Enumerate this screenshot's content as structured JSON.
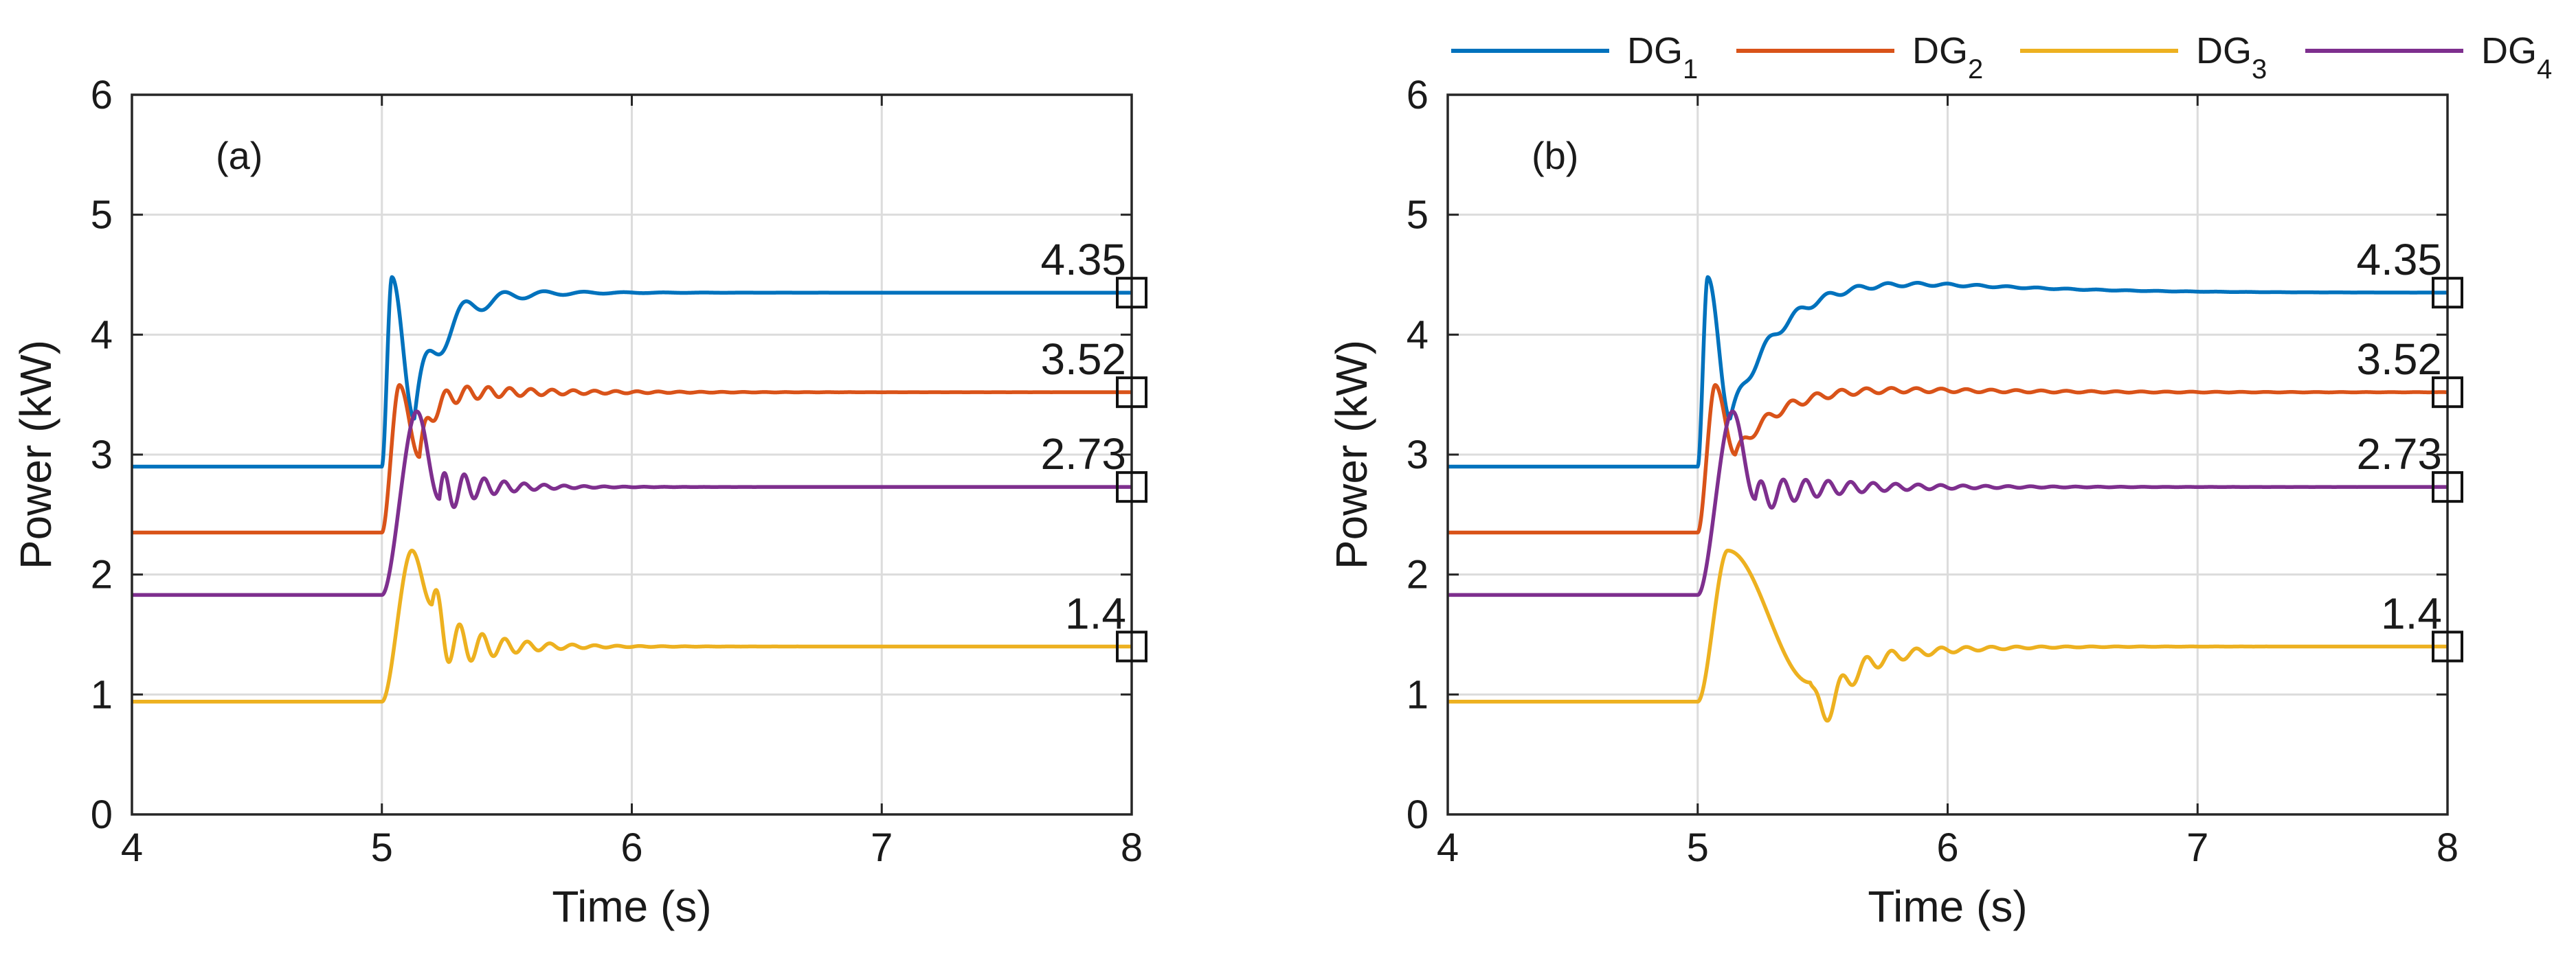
{
  "legend": {
    "items": [
      {
        "base": "DG",
        "sub": "1",
        "color": "#0072BD"
      },
      {
        "base": "DG",
        "sub": "2",
        "color": "#D95319"
      },
      {
        "base": "DG",
        "sub": "3",
        "color": "#EDB120"
      },
      {
        "base": "DG",
        "sub": "4",
        "color": "#7E2F8E"
      }
    ]
  },
  "chart_data": [
    {
      "type": "line",
      "panel_label": "(a)",
      "xlabel": "Time (s)",
      "ylabel": "Power (kW)",
      "xlim": [
        4,
        8
      ],
      "ylim": [
        0,
        6
      ],
      "xticks": [
        "4",
        "5",
        "6",
        "7",
        "8"
      ],
      "yticks": [
        "0",
        "1",
        "2",
        "3",
        "4",
        "5",
        "6"
      ],
      "grid": true,
      "step_time": 5,
      "series": [
        {
          "name": "DG1",
          "color": "#0072BD",
          "initial": 2.9,
          "final": 4.35,
          "peak": 4.48,
          "peak_time": 5.04,
          "dip": 3.3,
          "dip_time": 5.13,
          "settle_tau": 0.18,
          "ripple_amp": 0.22,
          "ripple_period": 0.16,
          "ripple_decay": 0.22
        },
        {
          "name": "DG2",
          "color": "#D95319",
          "initial": 2.35,
          "final": 3.52,
          "peak": 3.58,
          "peak_time": 5.07,
          "dip": 2.98,
          "dip_time": 5.15,
          "settle_tau": 0.08,
          "ripple_amp": 0.1,
          "ripple_period": 0.085,
          "ripple_decay": 0.35
        },
        {
          "name": "DG3",
          "color": "#EDB120",
          "initial": 0.94,
          "final": 1.4,
          "peak": 2.2,
          "peak_time": 5.12,
          "dip": 1.75,
          "dip_time": 5.2,
          "settle_tau": 0.07,
          "ripple_amp": 0.28,
          "ripple_period": 0.09,
          "ripple_decay": 0.2
        },
        {
          "name": "DG4",
          "color": "#7E2F8E",
          "initial": 1.83,
          "final": 2.73,
          "peak": 3.36,
          "peak_time": 5.14,
          "dip": 2.63,
          "dip_time": 5.23,
          "settle_tau": 0.07,
          "ripple_amp": 0.2,
          "ripple_period": 0.08,
          "ripple_decay": 0.18
        }
      ],
      "annotations": [
        {
          "text": "4.35",
          "x": 8,
          "y": 4.35
        },
        {
          "text": "3.52",
          "x": 8,
          "y": 3.52
        },
        {
          "text": "2.73",
          "x": 8,
          "y": 2.73
        },
        {
          "text": "1.4",
          "x": 8,
          "y": 1.4
        }
      ]
    },
    {
      "type": "line",
      "panel_label": "(b)",
      "xlabel": "Time (s)",
      "ylabel": "Power (kW)",
      "xlim": [
        4,
        8
      ],
      "ylim": [
        0,
        6
      ],
      "xticks": [
        "4",
        "5",
        "6",
        "7",
        "8"
      ],
      "yticks": [
        "0",
        "1",
        "2",
        "3",
        "4",
        "5",
        "6"
      ],
      "grid": true,
      "step_time": 5,
      "series": [
        {
          "name": "DG1",
          "color": "#0072BD",
          "initial": 2.9,
          "final": 4.35,
          "peak": 4.48,
          "peak_time": 5.04,
          "dip": 3.3,
          "dip_time": 5.13,
          "overshoot": 0.22,
          "overshoot_time": 5.45,
          "settle_tau": 0.45,
          "ripple_amp": 0.06,
          "ripple_period": 0.12,
          "ripple_decay": 0.5
        },
        {
          "name": "DG2",
          "color": "#D95319",
          "initial": 2.35,
          "final": 3.52,
          "peak": 3.58,
          "peak_time": 5.07,
          "dip": 3.0,
          "dip_time": 5.15,
          "overshoot": 0.12,
          "overshoot_time": 5.4,
          "settle_tau": 0.45,
          "ripple_amp": 0.05,
          "ripple_period": 0.1,
          "ripple_decay": 0.7
        },
        {
          "name": "DG3",
          "color": "#EDB120",
          "initial": 0.94,
          "final": 1.4,
          "peak": 2.2,
          "peak_time": 5.12,
          "dip": 1.1,
          "dip_time": 5.45,
          "overshoot": -0.3,
          "overshoot_time": 5.5,
          "settle_tau": 0.4,
          "ripple_amp": 0.15,
          "ripple_period": 0.1,
          "ripple_decay": 0.3
        },
        {
          "name": "DG4",
          "color": "#7E2F8E",
          "initial": 1.83,
          "final": 2.73,
          "peak": 3.36,
          "peak_time": 5.14,
          "dip": 2.63,
          "dip_time": 5.23,
          "overshoot": 0,
          "overshoot_time": 5.4,
          "settle_tau": 0.2,
          "ripple_amp": 0.14,
          "ripple_period": 0.09,
          "ripple_decay": 0.35
        }
      ],
      "annotations": [
        {
          "text": "4.35",
          "x": 8,
          "y": 4.35
        },
        {
          "text": "3.52",
          "x": 8,
          "y": 3.52
        },
        {
          "text": "2.73",
          "x": 8,
          "y": 2.73
        },
        {
          "text": "1.4",
          "x": 8,
          "y": 1.4
        }
      ]
    }
  ]
}
